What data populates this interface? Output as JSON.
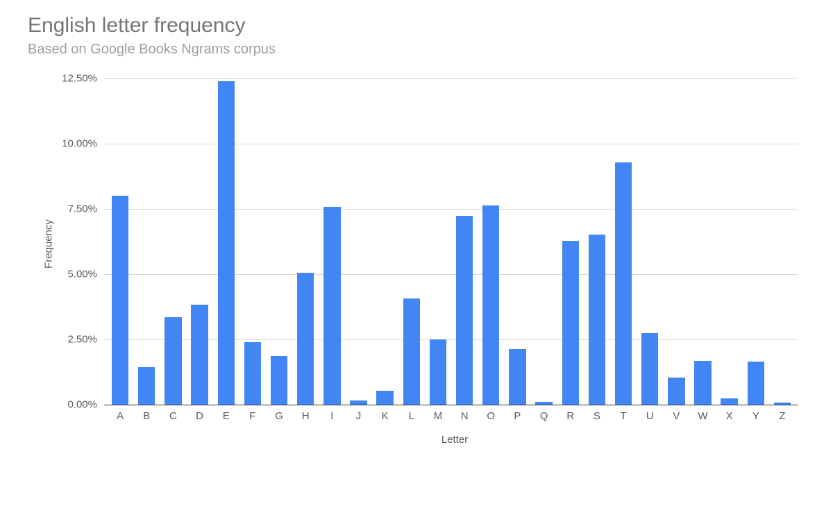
{
  "chart": {
    "type": "bar",
    "title": "English letter frequency",
    "subtitle": "Based on Google Books Ngrams corpus",
    "title_color": "#757575",
    "subtitle_color": "#9e9e9e",
    "title_fontsize": 30,
    "subtitle_fontsize": 20,
    "xlabel": "Letter",
    "ylabel": "Frequency",
    "label_color": "#595959",
    "label_fontsize": 15,
    "background_color": "#ffffff",
    "grid_color": "#d9d9d9",
    "baseline_color": "#333333",
    "bar_color": "#4285f4",
    "bar_width": 0.64,
    "ylim": [
      0,
      12.5
    ],
    "ytick_step": 2.5,
    "yticks": [
      "0.00%",
      "2.50%",
      "5.00%",
      "7.50%",
      "10.00%",
      "12.50%"
    ],
    "categories": [
      "A",
      "B",
      "C",
      "D",
      "E",
      "F",
      "G",
      "H",
      "I",
      "J",
      "K",
      "L",
      "M",
      "N",
      "O",
      "P",
      "Q",
      "R",
      "S",
      "T",
      "U",
      "V",
      "W",
      "X",
      "Y",
      "Z"
    ],
    "values": [
      8.0,
      1.44,
      3.34,
      3.82,
      12.4,
      2.4,
      1.87,
      5.05,
      7.57,
      0.16,
      0.54,
      4.07,
      2.51,
      7.23,
      7.64,
      2.14,
      0.12,
      6.28,
      6.51,
      9.28,
      2.73,
      1.05,
      1.68,
      0.23,
      1.66,
      0.09
    ]
  }
}
